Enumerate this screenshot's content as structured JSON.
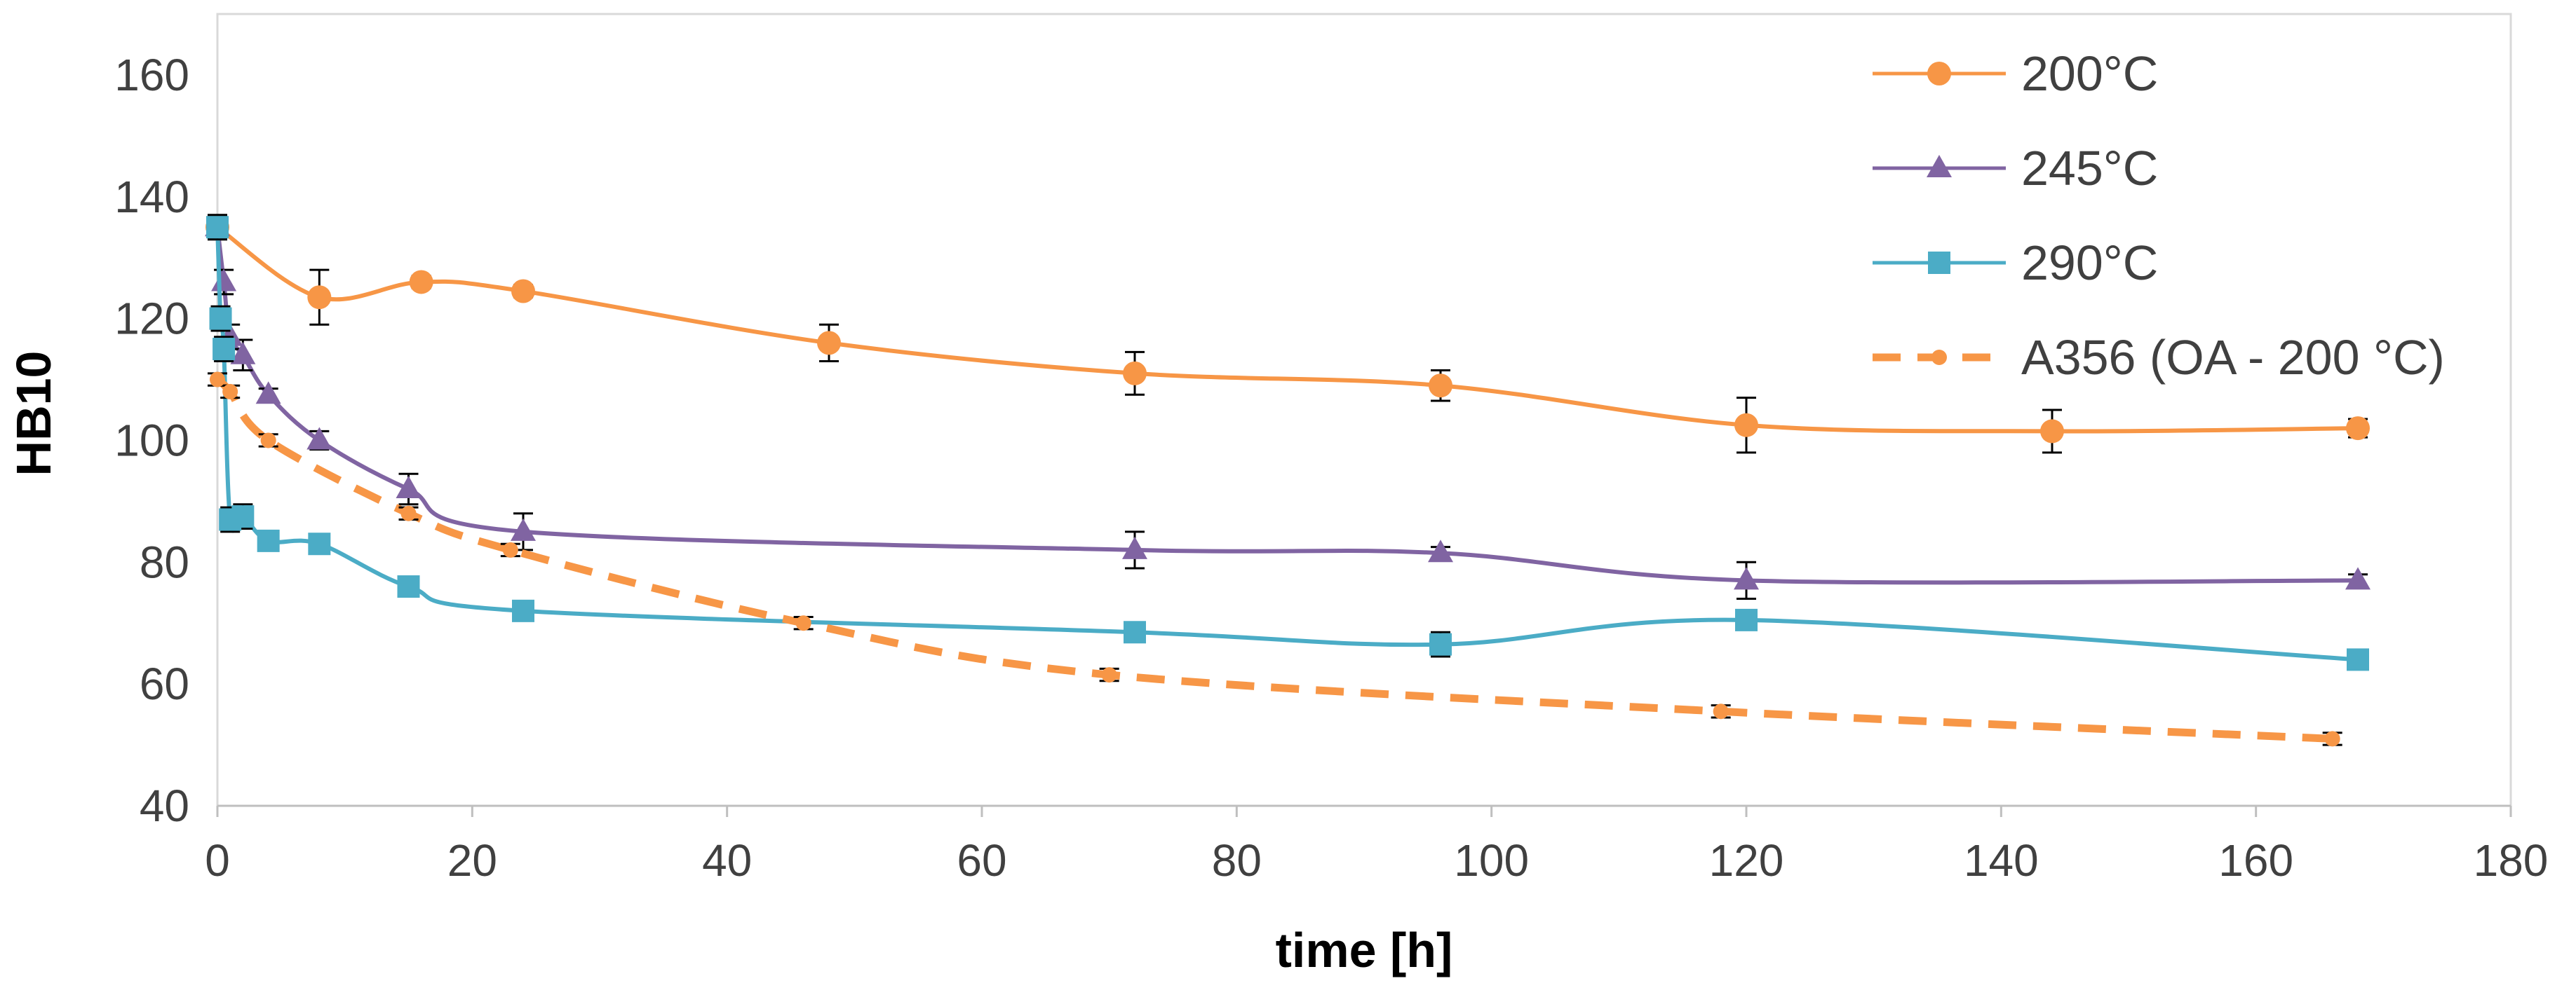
{
  "chart_data": {
    "type": "line",
    "xlabel": "time [h]",
    "ylabel": "HB10",
    "xlim": [
      0,
      180
    ],
    "ylim": [
      40,
      170
    ],
    "x_ticks": [
      0,
      20,
      40,
      60,
      80,
      100,
      120,
      140,
      160,
      180
    ],
    "y_ticks": [
      40,
      60,
      80,
      100,
      120,
      140,
      160
    ],
    "grid": false,
    "legend_position": "top-right",
    "series": [
      {
        "name": "200°C",
        "color": "#F79646",
        "marker": "circle",
        "line_style": "solid",
        "x": [
          0,
          8,
          16,
          24,
          48,
          72,
          96,
          120,
          144,
          168
        ],
        "y": [
          135,
          123.5,
          126,
          124.5,
          116,
          111,
          109,
          102.5,
          101.5,
          102
        ],
        "error": [
          2,
          4.5,
          1,
          1,
          3,
          3.5,
          2.5,
          4.5,
          3.5,
          1.5
        ]
      },
      {
        "name": "245°C",
        "color": "#8064A2",
        "marker": "triangle",
        "line_style": "solid",
        "x": [
          0,
          0.5,
          1,
          2,
          4,
          8,
          15,
          24,
          72,
          96,
          120,
          168
        ],
        "y": [
          135,
          126,
          117,
          114,
          107.5,
          100,
          92,
          85,
          82,
          81.5,
          77,
          77
        ],
        "error": [
          2,
          2,
          2,
          2.5,
          1,
          1.5,
          2.5,
          3,
          3,
          1,
          3,
          1
        ]
      },
      {
        "name": "290°C",
        "color": "#4BACC6",
        "marker": "square",
        "line_style": "solid",
        "x": [
          0,
          0.25,
          0.5,
          1,
          2,
          4,
          8,
          15,
          24,
          72,
          96,
          120,
          168
        ],
        "y": [
          135,
          120,
          115,
          87,
          87.5,
          83.5,
          83,
          76,
          72,
          68.5,
          66.5,
          70.5,
          64
        ],
        "error": [
          2,
          2,
          2,
          2,
          2,
          1.5,
          1,
          1,
          1,
          1,
          2,
          1.5,
          1
        ]
      },
      {
        "name": "A356 (OA - 200 °C)",
        "color": "#F79646",
        "marker": "circle-small",
        "line_style": "dashed",
        "x": [
          0,
          1,
          4,
          15,
          23,
          46,
          70,
          118,
          166
        ],
        "y": [
          110,
          108,
          100,
          88,
          82,
          70,
          61.5,
          55.5,
          51
        ],
        "error": [
          1,
          1,
          1,
          1,
          1,
          1,
          1,
          1,
          1
        ]
      }
    ]
  }
}
